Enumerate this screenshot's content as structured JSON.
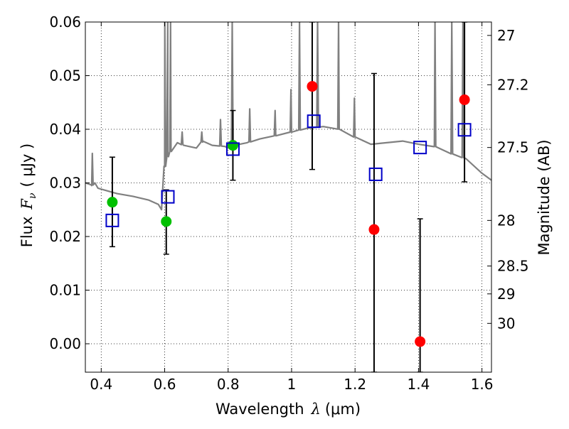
{
  "chart_data": {
    "type": "scatter",
    "xlabel": "Wavelength",
    "xlabel_symbol": "λ",
    "xlabel_unit": "(μm)",
    "ylabel": "Flux",
    "ylabel_symbol": "F",
    "ylabel_sub": "ν",
    "ylabel_unit": "( μJy )",
    "ylabel_right": "Magnitude (AB)",
    "xlim": [
      0.35,
      1.63
    ],
    "ylim": [
      -0.0053,
      0.06
    ],
    "x_ticks": [
      0.4,
      0.6,
      0.8,
      1.0,
      1.2,
      1.4,
      1.6
    ],
    "x_tick_labels": [
      "0.4",
      "0.6",
      "0.8",
      "1",
      "1.2",
      "1.4",
      "1.6"
    ],
    "y_ticks": [
      0.0,
      0.01,
      0.02,
      0.03,
      0.04,
      0.05,
      0.06
    ],
    "y_tick_labels": [
      "0.00",
      "0.01",
      "0.02",
      "0.03",
      "0.04",
      "0.05",
      "0.06"
    ],
    "mag_ticks": [
      {
        "label": "27",
        "flux": 0.0575
      },
      {
        "label": "27.2",
        "flux": 0.0483
      },
      {
        "label": "27.5",
        "flux": 0.0366
      },
      {
        "label": "28",
        "flux": 0.023
      },
      {
        "label": "28.5",
        "flux": 0.0145
      },
      {
        "label": "29",
        "flux": 0.0093
      },
      {
        "label": "30",
        "flux": 0.0038
      }
    ],
    "grid": true,
    "series": [
      {
        "name": "model spectrum",
        "kind": "line",
        "color": "#808080",
        "x": [
          0.35,
          0.37,
          0.38,
          0.39,
          0.42,
          0.45,
          0.5,
          0.55,
          0.58,
          0.59,
          0.6,
          0.61,
          0.62,
          0.64,
          0.66,
          0.7,
          0.72,
          0.75,
          0.79,
          0.8,
          0.82,
          0.86,
          0.9,
          0.95,
          1.0,
          1.05,
          1.1,
          1.15,
          1.2,
          1.25,
          1.3,
          1.35,
          1.4,
          1.45,
          1.5,
          1.55,
          1.6,
          1.63
        ],
        "y": [
          0.03,
          0.0295,
          0.03,
          0.029,
          0.0285,
          0.028,
          0.0275,
          0.0268,
          0.026,
          0.025,
          0.033,
          0.035,
          0.036,
          0.0375,
          0.037,
          0.0365,
          0.0378,
          0.037,
          0.0368,
          0.0365,
          0.037,
          0.0375,
          0.0382,
          0.0388,
          0.0395,
          0.0402,
          0.0405,
          0.04,
          0.0385,
          0.0372,
          0.0375,
          0.0378,
          0.0372,
          0.0368,
          0.0355,
          0.0345,
          0.0318,
          0.0305
        ],
        "emission_lines": [
          {
            "x": 0.372,
            "peak": 0.0355
          },
          {
            "x": 0.6005,
            "peak": 0.06
          },
          {
            "x": 0.6095,
            "peak": 0.06
          },
          {
            "x": 0.6185,
            "peak": 0.06
          },
          {
            "x": 0.655,
            "peak": 0.0395
          },
          {
            "x": 0.717,
            "peak": 0.0395
          },
          {
            "x": 0.776,
            "peak": 0.0418
          },
          {
            "x": 0.813,
            "peak": 0.06
          },
          {
            "x": 0.868,
            "peak": 0.0438
          },
          {
            "x": 0.948,
            "peak": 0.0435
          },
          {
            "x": 0.998,
            "peak": 0.0474
          },
          {
            "x": 1.025,
            "peak": 0.06
          },
          {
            "x": 1.082,
            "peak": 0.06
          },
          {
            "x": 1.148,
            "peak": 0.06
          },
          {
            "x": 1.198,
            "peak": 0.0458
          },
          {
            "x": 1.452,
            "peak": 0.06
          },
          {
            "x": 1.505,
            "peak": 0.06
          },
          {
            "x": 1.54,
            "peak": 0.06
          }
        ]
      },
      {
        "name": "observed (green)",
        "kind": "circle",
        "color": "#00c000",
        "x": [
          0.435,
          0.605,
          0.815
        ],
        "y": [
          0.0264,
          0.0228,
          0.037
        ]
      },
      {
        "name": "observed (red)",
        "kind": "circle",
        "color": "#ff0000",
        "x": [
          1.065,
          1.26,
          1.405,
          1.545
        ],
        "y": [
          0.048,
          0.0213,
          0.0004,
          0.0455
        ]
      },
      {
        "name": "model photometry",
        "kind": "square",
        "color": "#0000c8",
        "x": [
          0.435,
          0.61,
          0.815,
          1.07,
          1.265,
          1.405,
          1.545
        ],
        "y": [
          0.023,
          0.0274,
          0.0363,
          0.0415,
          0.0316,
          0.0366,
          0.0399
        ]
      }
    ],
    "error_bars": [
      {
        "x": 0.435,
        "low": 0.0181,
        "high": 0.0348
      },
      {
        "x": 0.605,
        "low": 0.0167,
        "high": 0.0287
      },
      {
        "x": 0.815,
        "low": 0.0305,
        "high": 0.0435
      },
      {
        "x": 1.065,
        "low": 0.0325,
        "high": 0.06
      },
      {
        "x": 1.26,
        "low": -0.0053,
        "high": 0.0504
      },
      {
        "x": 1.405,
        "low": -0.0053,
        "high": 0.0233
      },
      {
        "x": 1.545,
        "low": 0.0302,
        "high": 0.06
      }
    ]
  }
}
